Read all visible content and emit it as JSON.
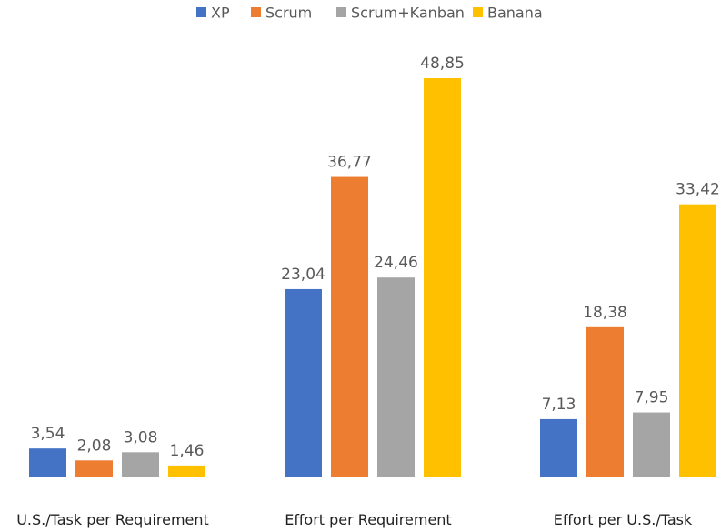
{
  "chart_data": {
    "type": "bar",
    "categories": [
      "U.S./Task  per Requirement",
      "Effort per Requirement",
      "Effort per U.S./Task"
    ],
    "series": [
      {
        "name": "XP",
        "color": "#4472C4",
        "values": [
          3.54,
          23.04,
          7.13
        ],
        "labels": [
          "3,54",
          "23,04",
          "7,13"
        ]
      },
      {
        "name": "Scrum",
        "color": "#ED7D31",
        "values": [
          2.08,
          36.77,
          18.38
        ],
        "labels": [
          "2,08",
          "36,77",
          "18,38"
        ]
      },
      {
        "name": "Scrum+Kanban",
        "color": "#A5A5A5",
        "values": [
          3.08,
          24.46,
          7.95
        ],
        "labels": [
          "3,08",
          "24,46",
          "7,95"
        ]
      },
      {
        "name": "Banana",
        "color": "#FFC000",
        "values": [
          1.46,
          48.85,
          33.42
        ],
        "labels": [
          "1,46",
          "48,85",
          "33,42"
        ]
      }
    ],
    "ylim": [
      0,
      48.85
    ],
    "grid": false,
    "legend": "top"
  }
}
